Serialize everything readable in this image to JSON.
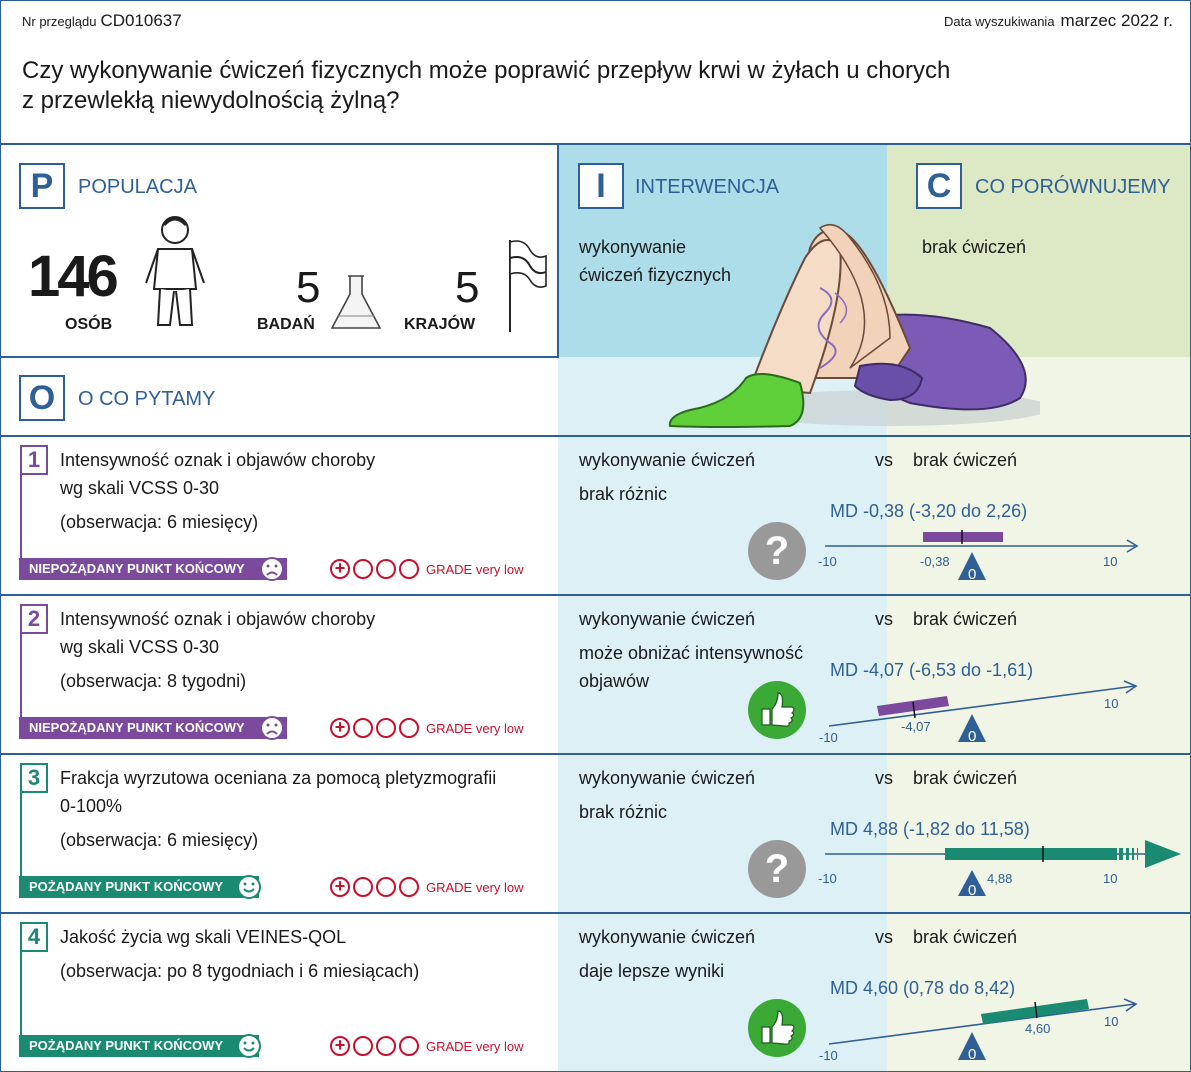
{
  "header": {
    "review_label": "Nr przeglądu",
    "review_id": "CD010637",
    "search_label": "Data wyszukiwania",
    "search_date": "marzec 2022 r.",
    "question_line1": "Czy wykonywanie ćwiczeń fizycznych może poprawić przepływ krwi w żyłach u chorych",
    "question_line2": "z przewlekłą niewydolnością żylną?"
  },
  "population": {
    "letter": "P",
    "title": "POPULACJA",
    "people": "146",
    "people_label": "OSÓB",
    "studies": "5",
    "studies_label": "BADAŃ",
    "countries": "5",
    "countries_label": "KRAJÓW"
  },
  "intervention": {
    "letter": "I",
    "title": "INTERWENCJA",
    "line1": "wykonywanie",
    "line2": "ćwiczeń fizycznych"
  },
  "comparison": {
    "letter": "C",
    "title": "CO PORÓWNUJEMY",
    "text": "brak ćwiczeń"
  },
  "outcomes_header": {
    "letter": "O",
    "title": "O CO PYTAMY"
  },
  "outcomes": [
    {
      "n": "1",
      "l1": "Intensywność oznak i objawów choroby",
      "l2": "wg skali VCSS 0-30",
      "l3": "(obserwacja: 6 miesięcy)",
      "tag": "NIEPOŻĄDANY PUNKT KOŃCOWY",
      "grade": "GRADE very low",
      "int": "wykonywanie ćwiczeń",
      "vs": "vs",
      "comp": "brak ćwiczeń",
      "res1": "brak różnic",
      "res2": "",
      "md": "MD -0,38 (-3,20 do 2,26)",
      "mdv": "-0,38",
      "zero": "0",
      "tmin": "-10",
      "tmax": "10"
    },
    {
      "n": "2",
      "l1": "Intensywność oznak i objawów choroby",
      "l2": "wg skali VCSS 0-30",
      "l3": "(obserwacja: 8 tygodni)",
      "tag": "NIEPOŻĄDANY PUNKT KOŃCOWY",
      "grade": "GRADE very low",
      "int": "wykonywanie ćwiczeń",
      "vs": "vs",
      "comp": "brak ćwiczeń",
      "res1": "może obniżać intensywność",
      "res2": "objawów",
      "md": "MD -4,07 (-6,53 do -1,61)",
      "mdv": "-4,07",
      "zero": "0",
      "tmin": "-10",
      "tmax": "10"
    },
    {
      "n": "3",
      "l1": "Frakcja wyrzutowa oceniana za pomocą pletyzmografii",
      "l2": "0-100%",
      "l3": "(obserwacja: 6 miesięcy)",
      "tag": "POŻĄDANY PUNKT KOŃCOWY",
      "grade": "GRADE very low",
      "int": "wykonywanie ćwiczeń",
      "vs": "vs",
      "comp": "brak ćwiczeń",
      "res1": "brak różnic",
      "res2": "",
      "md": "MD 4,88 (-1,82 do 11,58)",
      "mdv": "4,88",
      "zero": "0",
      "tmin": "-10",
      "tmax": "10"
    },
    {
      "n": "4",
      "l1": "Jakość życia wg skali VEINES-QOL",
      "l2": "(obserwacja: po 8 tygodniach i 6 miesiącach)",
      "l3": "",
      "tag": "POŻĄDANY PUNKT KOŃCOWY",
      "grade": "GRADE very low",
      "int": "wykonywanie ćwiczeń",
      "vs": "vs",
      "comp": "brak ćwiczeń",
      "res1": "daje lepsze wyniki",
      "res2": "",
      "md": "MD 4,60 (0,78 do 8,42)",
      "mdv": "4,60",
      "zero": "0",
      "tmin": "-10",
      "tmax": "10"
    }
  ],
  "colors": {
    "blue": "#2e5f96",
    "purple": "#7b4a9c",
    "teal": "#1a8a72",
    "red": "#c8102e",
    "green": "#3aa935",
    "gray": "#999999"
  },
  "icons": [
    "person-icon",
    "flask-icon",
    "flag-icon",
    "legs-illustration",
    "question-icon",
    "thumbs-up-icon",
    "sad-face-icon",
    "smile-face-icon"
  ]
}
